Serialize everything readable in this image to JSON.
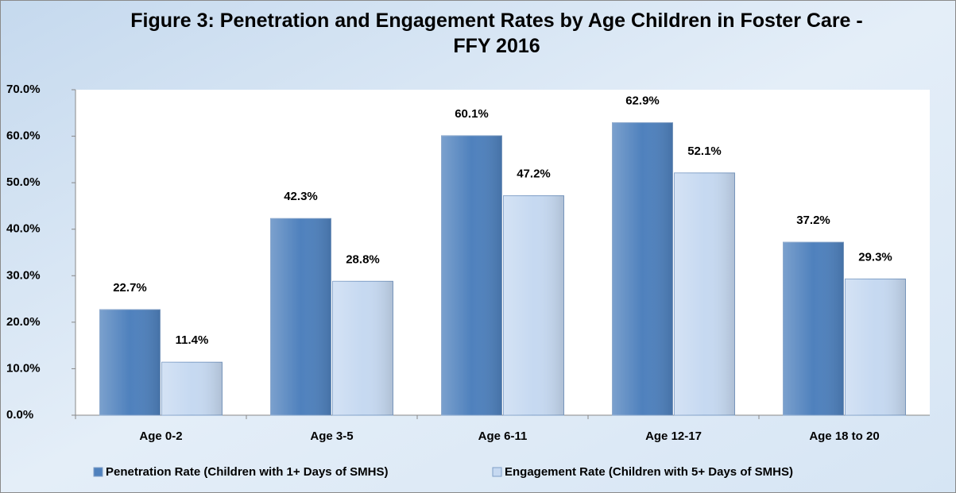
{
  "chart_data": {
    "type": "bar",
    "title": "Figure 3: Penetration and Engagement Rates by Age Children in Foster Care - FFY 2016",
    "categories": [
      "Age 0-2",
      "Age 3-5",
      "Age 6-11",
      "Age 12-17",
      "Age 18 to 20"
    ],
    "series": [
      {
        "name": "Penetration Rate (Children with 1+ Days of SMHS)",
        "color": "#4f81bd",
        "values": [
          22.7,
          42.3,
          60.1,
          62.9,
          37.2
        ],
        "value_labels": [
          "22.7%",
          "42.3%",
          "60.1%",
          "62.9%",
          "37.2%"
        ]
      },
      {
        "name": "Engagement Rate (Children with 5+ Days of SMHS)",
        "color": "#c6d9f1",
        "values": [
          11.4,
          28.8,
          47.2,
          52.1,
          29.3
        ],
        "value_labels": [
          "11.4%",
          "28.8%",
          "47.2%",
          "52.1%",
          "29.3%"
        ]
      }
    ],
    "ylim": [
      0,
      70
    ],
    "yticks": [
      {
        "value": 0,
        "label": "0.0%"
      },
      {
        "value": 10,
        "label": "10.0%"
      },
      {
        "value": 20,
        "label": "20.0%"
      },
      {
        "value": 30,
        "label": "30.0%"
      },
      {
        "value": 40,
        "label": "40.0%"
      },
      {
        "value": 50,
        "label": "50.0%"
      },
      {
        "value": 60,
        "label": "60.0%"
      },
      {
        "value": 70,
        "label": "70.0%"
      }
    ],
    "legend": "bottom"
  }
}
